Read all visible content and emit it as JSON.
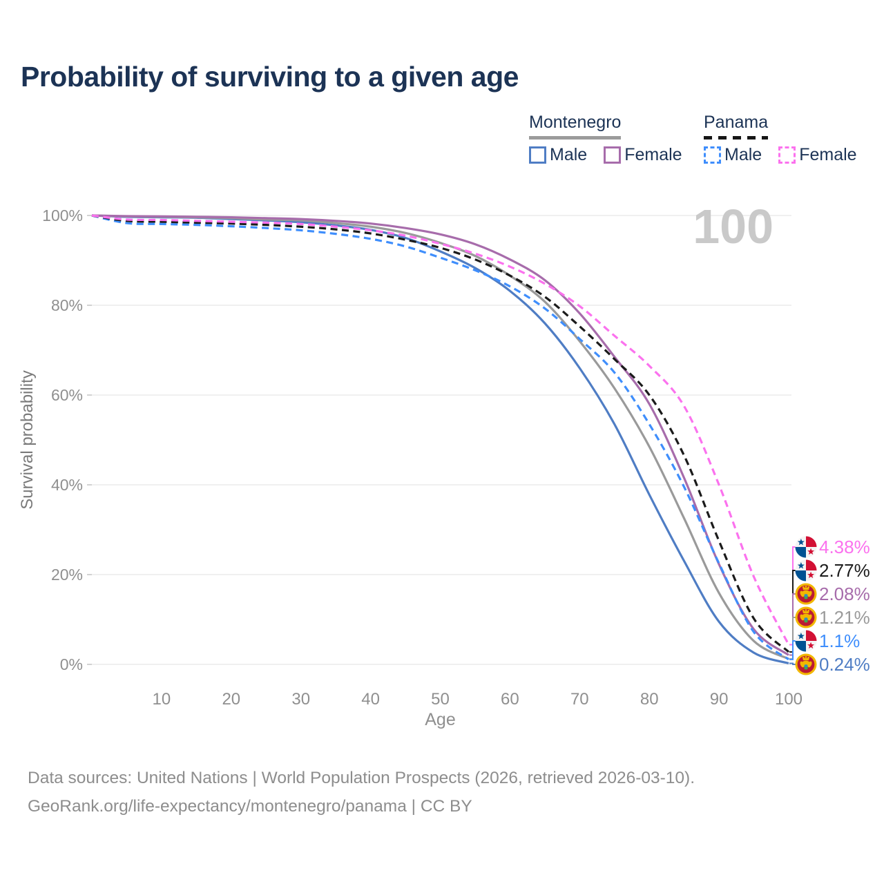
{
  "title": "Probability of surviving to a given age",
  "watermark": "100",
  "legend": {
    "groups": [
      {
        "name": "Montenegro",
        "line_style": "solid",
        "underline_color": "#9b9b9b",
        "items": [
          {
            "label": "Male",
            "color": "#4f7dc4"
          },
          {
            "label": "Female",
            "color": "#a76cab"
          }
        ]
      },
      {
        "name": "Panama",
        "line_style": "dashed",
        "underline_color": "#161616",
        "items": [
          {
            "label": "Male",
            "color": "#3f8efc"
          },
          {
            "label": "Female",
            "color": "#fb72ee"
          }
        ]
      }
    ]
  },
  "chart_data": {
    "type": "line",
    "title": "Probability of surviving to a given age",
    "xlabel": "Age",
    "ylabel": "Survival probability",
    "xlim": [
      0,
      100
    ],
    "ylim": [
      0,
      100
    ],
    "grid": "horizontal",
    "legend_position": "top-right",
    "x_ticks": [
      10,
      20,
      30,
      40,
      50,
      60,
      70,
      80,
      90,
      100
    ],
    "y_tick_values": [
      0,
      20,
      40,
      60,
      80,
      100
    ],
    "y_tick_labels": [
      "0%",
      "20%",
      "40%",
      "60%",
      "80%",
      "100%"
    ],
    "x": [
      0,
      5,
      10,
      15,
      20,
      25,
      30,
      35,
      40,
      45,
      50,
      55,
      60,
      65,
      70,
      75,
      80,
      85,
      90,
      95,
      100
    ],
    "series": [
      {
        "name": "Montenegro Male",
        "country": "Montenegro",
        "sex": "Male",
        "color": "#4f7dc4",
        "dash": "solid",
        "flag": "montenegro",
        "end_label": "0.24%",
        "values": [
          100,
          99.7,
          99.6,
          99.5,
          99.2,
          98.9,
          98.5,
          97.8,
          96.8,
          95.0,
          92.0,
          88.3,
          83.2,
          76.0,
          66.0,
          53.5,
          37.8,
          23.0,
          9.5,
          2.6,
          0.24
        ]
      },
      {
        "name": "Montenegro",
        "country": "Montenegro",
        "sex": "Total",
        "color": "#9a9a9a",
        "dash": "solid",
        "flag": "montenegro",
        "end_label": "1.21%",
        "values": [
          100,
          99.8,
          99.7,
          99.6,
          99.4,
          99.1,
          98.9,
          98.3,
          97.5,
          96.1,
          93.9,
          91.0,
          86.6,
          80.8,
          72.0,
          61.5,
          48.5,
          32.5,
          15.9,
          5.2,
          1.21
        ]
      },
      {
        "name": "Montenegro Female",
        "country": "Montenegro",
        "sex": "Female",
        "color": "#a76cab",
        "dash": "solid",
        "flag": "montenegro",
        "end_label": "2.08%",
        "values": [
          100,
          99.85,
          99.8,
          99.7,
          99.6,
          99.4,
          99.2,
          98.8,
          98.2,
          97.2,
          95.8,
          93.6,
          90.2,
          85.6,
          78.2,
          68.5,
          58.0,
          41.5,
          22.3,
          7.8,
          2.08
        ]
      },
      {
        "name": "Panama Male",
        "country": "Panama",
        "sex": "Male",
        "color": "#3f8efc",
        "dash": "dashed",
        "flag": "panama",
        "end_label": "1.1%",
        "values": [
          100,
          98.3,
          98.1,
          97.9,
          97.6,
          97.2,
          96.7,
          95.9,
          94.8,
          93.1,
          90.6,
          87.8,
          84.2,
          79.3,
          72.5,
          65.0,
          53.5,
          39.5,
          22.5,
          7.2,
          1.1
        ]
      },
      {
        "name": "Panama",
        "country": "Panama",
        "sex": "Total",
        "color": "#1b1b1b",
        "dash": "dashed",
        "flag": "panama",
        "end_label": "2.77%",
        "values": [
          100,
          98.8,
          98.6,
          98.4,
          98.2,
          97.9,
          97.5,
          96.9,
          96.0,
          94.6,
          92.8,
          90.2,
          86.6,
          81.9,
          75.3,
          68.0,
          60.0,
          46.5,
          27.5,
          10.2,
          2.77
        ]
      },
      {
        "name": "Panama Female",
        "country": "Panama",
        "sex": "Female",
        "color": "#fb72ee",
        "dash": "dashed",
        "flag": "panama",
        "end_label": "4.38%",
        "values": [
          100,
          99.1,
          99.0,
          98.8,
          98.6,
          98.4,
          98.1,
          97.5,
          96.7,
          95.5,
          93.7,
          91.5,
          88.6,
          84.8,
          79.8,
          73.2,
          66.5,
          57.5,
          40.0,
          19.5,
          4.38
        ]
      }
    ]
  },
  "footer": {
    "line1": "Data sources: United Nations | World Population Prospects (2026, retrieved 2026-03-10).",
    "line2": "GeoRank.org/life-expectancy/montenegro/panama | CC BY"
  }
}
